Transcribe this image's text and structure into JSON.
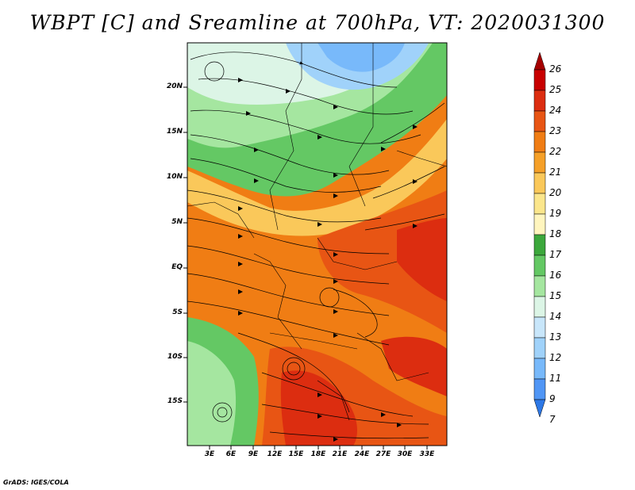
{
  "title": "WBPT [C] and Sreamline at 700hPa, VT: 2020031300",
  "lat_labels": [
    "20N",
    "15N",
    "10N",
    "5N",
    "EQ",
    "5S",
    "10S",
    "15S"
  ],
  "lon_labels": [
    "3E",
    "6E",
    "9E",
    "12E",
    "15E",
    "18E",
    "21E",
    "24E",
    "27E",
    "30E",
    "33E"
  ],
  "colorbar": {
    "labels": [
      "26",
      "25",
      "24",
      "23",
      "22",
      "21",
      "20",
      "19",
      "18",
      "17",
      "16",
      "15",
      "14",
      "13",
      "12",
      "11",
      "9",
      "7"
    ],
    "colors": [
      "#a50000",
      "#c80000",
      "#dc2d10",
      "#e85514",
      "#f07d14",
      "#f5a028",
      "#fac85a",
      "#fbe68c",
      "#fff5be",
      "#3ca83c",
      "#64c864",
      "#a5e6a0",
      "#dcf5e6",
      "#c8e6fa",
      "#a0d2fa",
      "#78b9fa",
      "#5096f5",
      "#2d78e6"
    ]
  },
  "credit": "GrADS: IGES/COLA"
}
